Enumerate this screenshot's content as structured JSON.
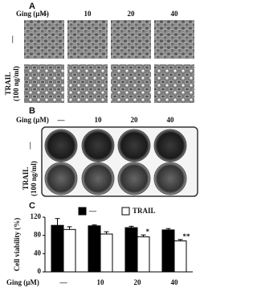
{
  "panel_a": {
    "label": "A",
    "column_header": "Ging (μM)",
    "columns": [
      "—",
      "10",
      "20",
      "40"
    ],
    "rows": [
      [
        "—"
      ],
      [
        "TRAIL",
        "(100 ng/ml)"
      ]
    ]
  },
  "panel_b": {
    "label": "B",
    "column_header": "Ging (μM)",
    "columns": [
      "—",
      "10",
      "20",
      "40"
    ],
    "rows": [
      [
        "—"
      ],
      [
        "TRAIL",
        "(100 ng/ml)"
      ]
    ]
  },
  "chart_data": {
    "type": "bar",
    "label": "C",
    "y_label": "Cell viability (%)",
    "x_label": "Ging (μM)",
    "categories": [
      "—",
      "10",
      "20",
      "40"
    ],
    "series": [
      {
        "name": "—",
        "color": "#000000",
        "values": [
          102,
          101,
          97,
          92
        ],
        "errors": [
          15,
          2,
          3,
          3
        ]
      },
      {
        "name": "TRAIL",
        "color": "#ffffff",
        "values": [
          93,
          83,
          77,
          68
        ],
        "errors": [
          6,
          5,
          4,
          3
        ],
        "annotations": [
          null,
          null,
          "*",
          "**"
        ]
      }
    ],
    "ylim": [
      0,
      120
    ],
    "yticks": [
      0,
      40,
      80,
      120
    ]
  }
}
